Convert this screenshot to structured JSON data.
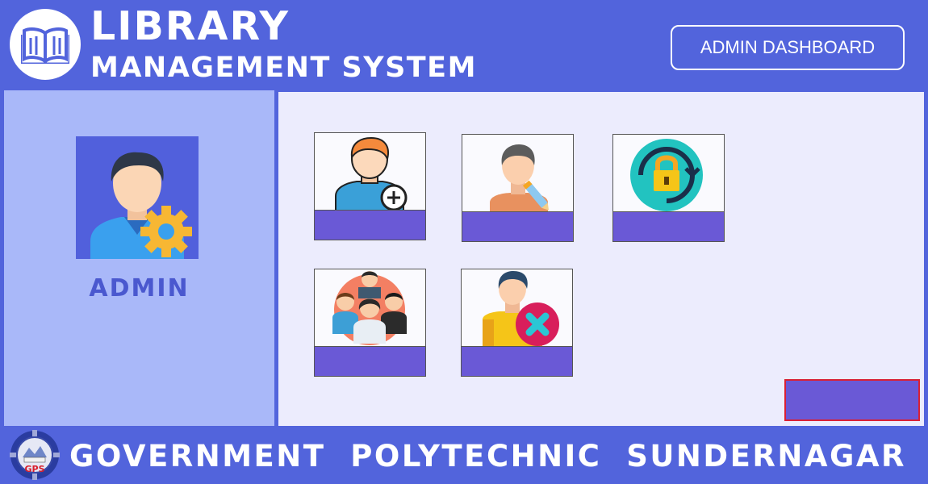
{
  "header": {
    "title_line1": "LIBRARY",
    "title_line2": "MANAGEMENT SYSTEM",
    "dashboard_button": "ADMIN DASHBOARD"
  },
  "sidebar": {
    "user_label": "ADMIN",
    "avatar_icon": "admin-gear-icon"
  },
  "main": {
    "cards": [
      {
        "icon": "add-user-icon",
        "label": ""
      },
      {
        "icon": "edit-user-icon",
        "label": ""
      },
      {
        "icon": "change-password-icon",
        "label": ""
      },
      {
        "icon": "user-group-icon",
        "label": ""
      },
      {
        "icon": "remove-user-icon",
        "label": ""
      }
    ],
    "logout_button": ""
  },
  "footer": {
    "institute": "GOVERNMENT  POLYTECHNIC  SUNDERNAGAR",
    "logo_text": "GPS"
  },
  "colors": {
    "background": "#5264dc",
    "sidebar": "#a9b8f9",
    "main_panel": "#ececfd",
    "card_bar": "#6a59d6",
    "accent_border": "#d92035"
  }
}
